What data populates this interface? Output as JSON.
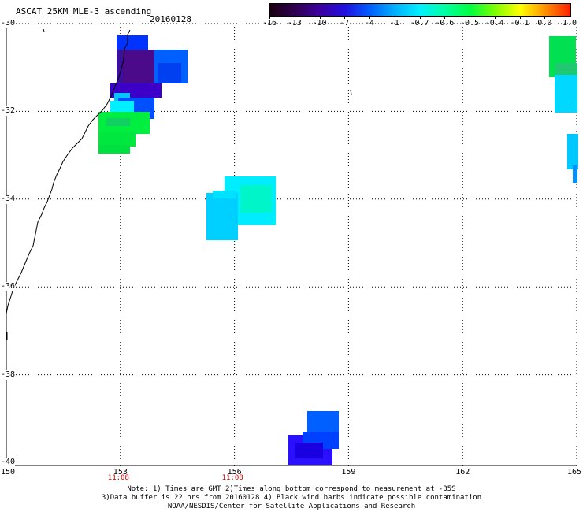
{
  "title": "ASCAT 25KM MLE-3 ascending",
  "date": "20160128",
  "colorbar": {
    "labels": [
      "-16",
      "-13",
      "-10",
      "-7",
      "-4",
      "-1",
      "-0.7",
      "-0.6",
      "-0.5",
      "-0.4",
      "-0.1",
      "0.0",
      "1.0"
    ],
    "colors": [
      "#1a0010",
      "#300050",
      "#3c00a0",
      "#2010e0",
      "#0060ff",
      "#00b0ff",
      "#00f0ff",
      "#00ffa0",
      "#00ff40",
      "#80ff00",
      "#ffff00",
      "#ff9000",
      "#ff2000"
    ]
  },
  "map": {
    "x_ticks": [
      "150",
      "153",
      "156",
      "159",
      "162",
      "165"
    ],
    "y_ticks": [
      "-30",
      "-32",
      "-34",
      "-36",
      "-38",
      "-40"
    ],
    "x_ticks_data": [
      150,
      153,
      156,
      159,
      162,
      165
    ],
    "y_ticks_data": [
      -30,
      -32,
      -34,
      -36,
      -38,
      -40
    ],
    "times": [
      {
        "label": "11:08",
        "lon": 153
      },
      {
        "label": "11:08",
        "lon": 156
      }
    ]
  },
  "notes": {
    "line1": "Note: 1) Times are GMT 2)Times along bottom correspond to measurement at -35S",
    "line2": "3)Data buffer is 22 hrs from 20160128 4) Black wind barbs indicate possible contamination",
    "line3": "NOAA/NESDIS/Center for Satellite Applications and Research"
  }
}
